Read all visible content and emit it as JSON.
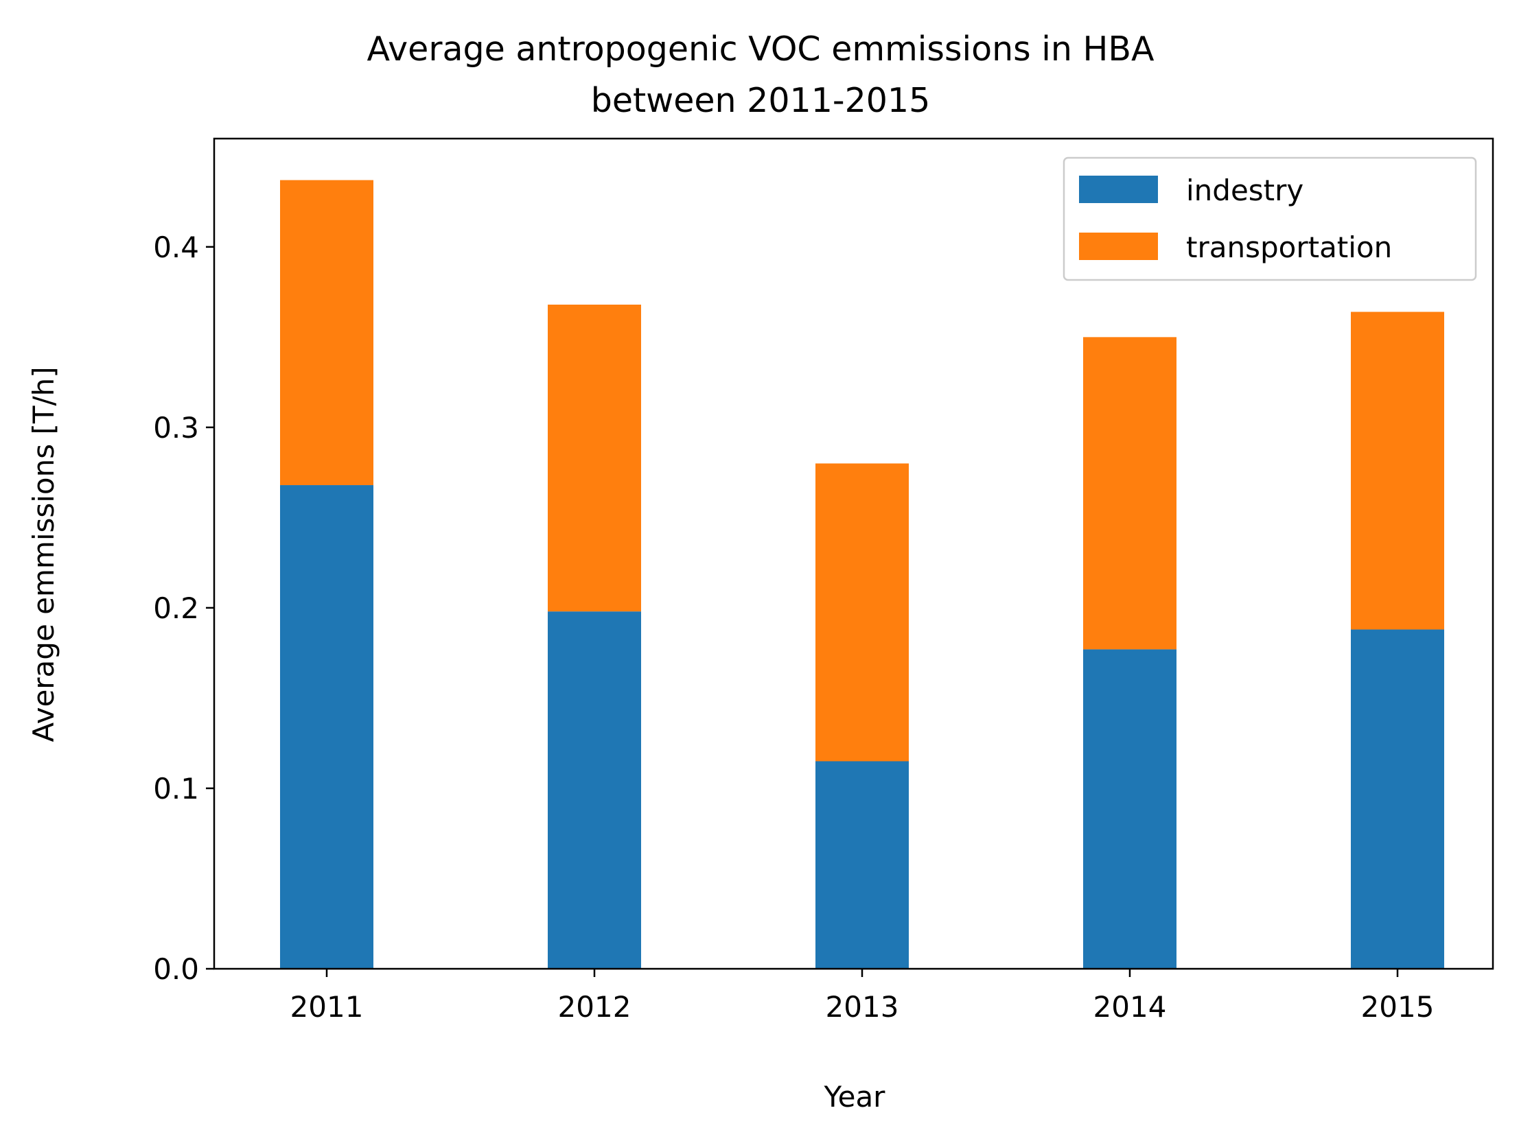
{
  "chart_data": {
    "type": "bar",
    "stacked": true,
    "title_lines": [
      "Average antropogenic VOC emmissions in HBA",
      "between 2011-2015"
    ],
    "xlabel": "Year",
    "ylabel": "Average emmissions [T/h]",
    "categories": [
      "2011",
      "2012",
      "2013",
      "2014",
      "2015"
    ],
    "series": [
      {
        "name": "indestry",
        "color": "#1f77b4",
        "values": [
          0.268,
          0.198,
          0.115,
          0.177,
          0.188
        ]
      },
      {
        "name": "transportation",
        "color": "#ff7f0e",
        "values": [
          0.169,
          0.17,
          0.165,
          0.173,
          0.176
        ]
      }
    ],
    "ylim": [
      0,
      0.46
    ],
    "yticks": [
      0.0,
      0.1,
      0.2,
      0.3,
      0.4
    ],
    "ytick_labels": [
      "0.0",
      "0.1",
      "0.2",
      "0.3",
      "0.4"
    ],
    "grid": false,
    "legend_position": "top-right"
  }
}
